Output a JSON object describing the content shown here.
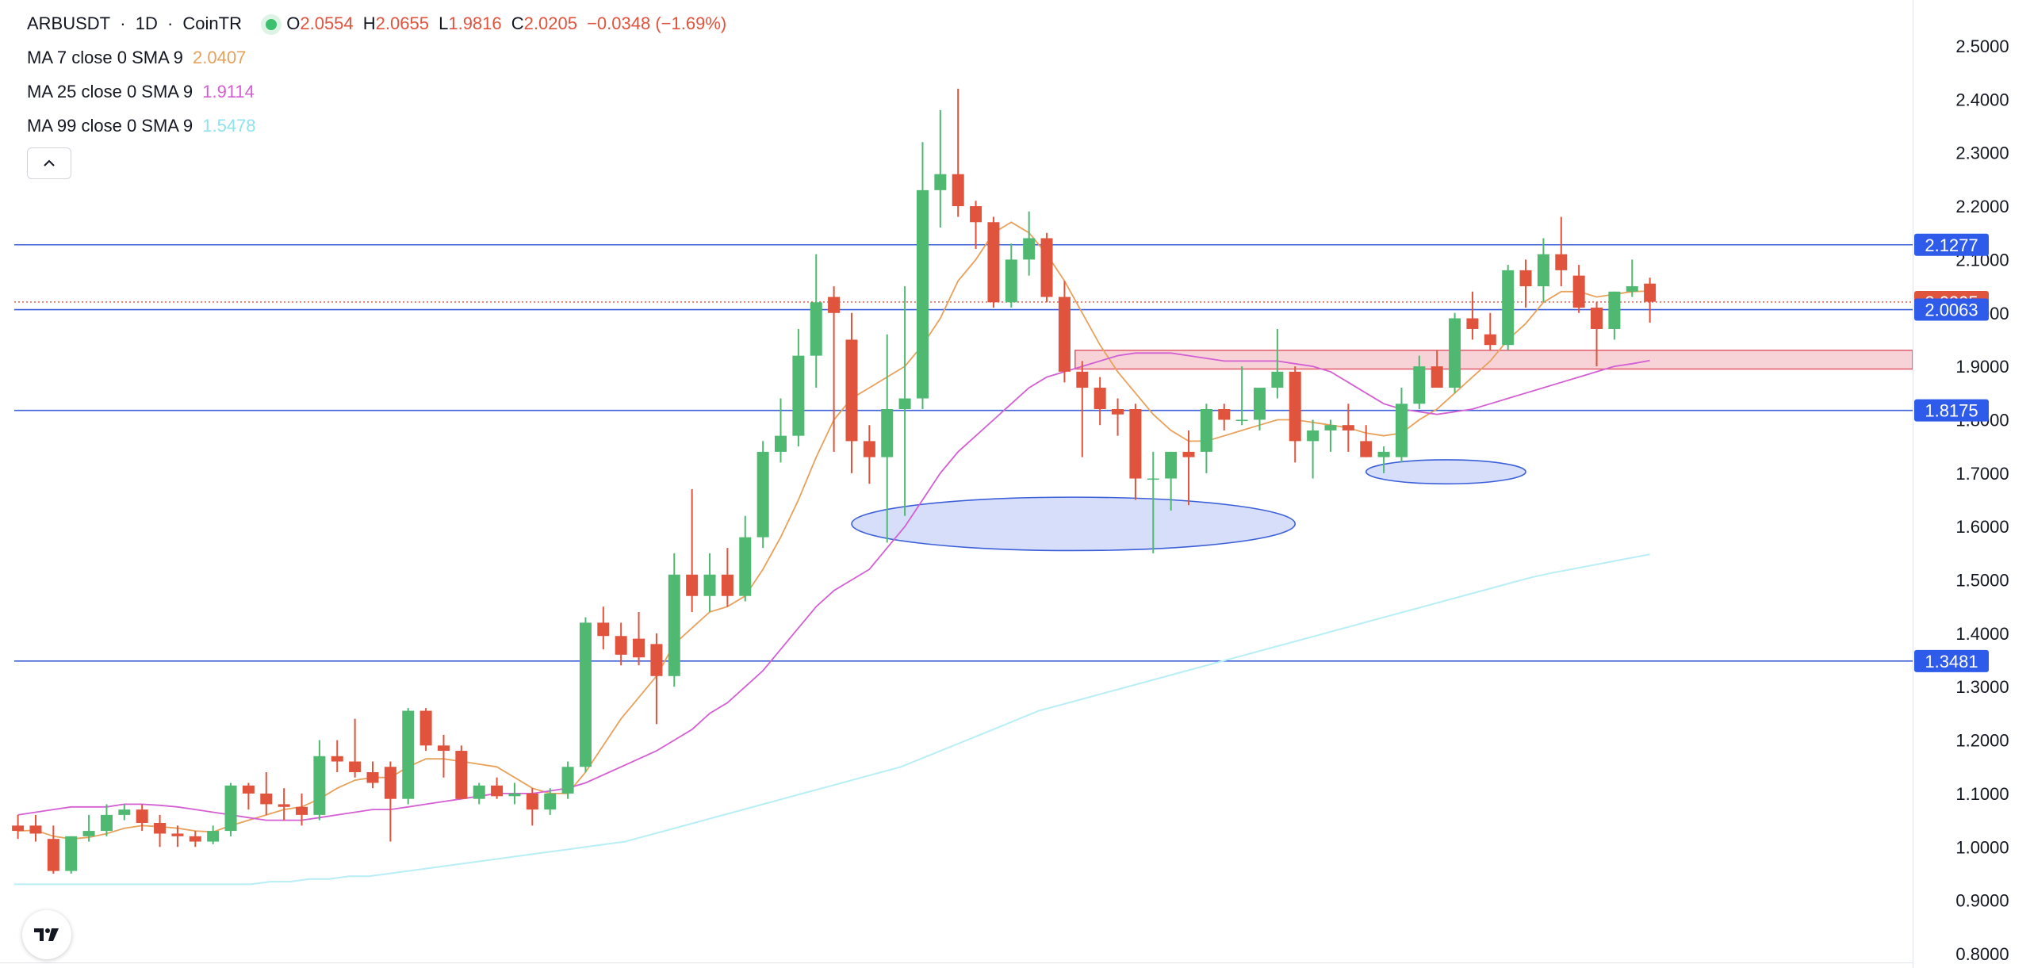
{
  "header": {
    "symbol": "ARBUSDT",
    "sep1": "·",
    "interval": "1D",
    "sep2": "·",
    "exchange": "CoinTR",
    "open_label": "O",
    "open": "2.0554",
    "high_label": "H",
    "high": "2.0655",
    "low_label": "L",
    "low": "1.9816",
    "close_label": "C",
    "close": "2.0205",
    "change": "−0.0348 (−1.69%)"
  },
  "legend": [
    {
      "label": "MA 7 close 0 SMA 9",
      "value": "2.0407",
      "color": "#e8a15b"
    },
    {
      "label": "MA 25 close 0 SMA 9",
      "value": "1.9114",
      "color": "#d45fd3"
    },
    {
      "label": "MA 99 close 0 SMA 9",
      "value": "1.5478",
      "color": "#8fe3ee"
    }
  ],
  "colors": {
    "up": "#4fb971",
    "down": "#e0533d",
    "hline": "#3b5fd9",
    "ellipse_fill": "#d6defa",
    "zone_fill": "#f7d3d7",
    "zone_stroke": "#e05a6a"
  },
  "chart_data": {
    "type": "candlestick",
    "interval": "1D",
    "y_axis": {
      "ticks": [
        "0.8000",
        "0.9000",
        "1.0000",
        "1.1000",
        "1.2000",
        "1.3000",
        "1.4000",
        "1.5000",
        "1.6000",
        "1.7000",
        "1.8000",
        "1.9000",
        "2.0000",
        "2.1000",
        "2.2000",
        "2.3000",
        "2.4000",
        "2.5000"
      ],
      "range": [
        0.8,
        2.5
      ]
    },
    "grid": false,
    "candles": [
      {
        "o": 1.04,
        "h": 1.06,
        "l": 1.015,
        "c": 1.03
      },
      {
        "o": 1.04,
        "h": 1.06,
        "l": 1.01,
        "c": 1.025
      },
      {
        "o": 1.015,
        "h": 1.04,
        "l": 0.95,
        "c": 0.955
      },
      {
        "o": 0.955,
        "h": 1.02,
        "l": 0.95,
        "c": 1.02
      },
      {
        "o": 1.02,
        "h": 1.06,
        "l": 1.01,
        "c": 1.03
      },
      {
        "o": 1.03,
        "h": 1.08,
        "l": 1.02,
        "c": 1.06
      },
      {
        "o": 1.06,
        "h": 1.08,
        "l": 1.05,
        "c": 1.07
      },
      {
        "o": 1.07,
        "h": 1.08,
        "l": 1.03,
        "c": 1.045
      },
      {
        "o": 1.045,
        "h": 1.06,
        "l": 1.0,
        "c": 1.025
      },
      {
        "o": 1.025,
        "h": 1.04,
        "l": 1.0,
        "c": 1.02
      },
      {
        "o": 1.02,
        "h": 1.03,
        "l": 1.0,
        "c": 1.01
      },
      {
        "o": 1.01,
        "h": 1.04,
        "l": 1.005,
        "c": 1.03
      },
      {
        "o": 1.03,
        "h": 1.12,
        "l": 1.02,
        "c": 1.115
      },
      {
        "o": 1.115,
        "h": 1.12,
        "l": 1.07,
        "c": 1.1
      },
      {
        "o": 1.1,
        "h": 1.14,
        "l": 1.06,
        "c": 1.08
      },
      {
        "o": 1.08,
        "h": 1.11,
        "l": 1.05,
        "c": 1.075
      },
      {
        "o": 1.075,
        "h": 1.1,
        "l": 1.04,
        "c": 1.06
      },
      {
        "o": 1.06,
        "h": 1.2,
        "l": 1.05,
        "c": 1.17
      },
      {
        "o": 1.17,
        "h": 1.2,
        "l": 1.14,
        "c": 1.16
      },
      {
        "o": 1.16,
        "h": 1.24,
        "l": 1.13,
        "c": 1.14
      },
      {
        "o": 1.14,
        "h": 1.16,
        "l": 1.11,
        "c": 1.12
      },
      {
        "o": 1.15,
        "h": 1.16,
        "l": 1.01,
        "c": 1.09
      },
      {
        "o": 1.09,
        "h": 1.26,
        "l": 1.08,
        "c": 1.255
      },
      {
        "o": 1.255,
        "h": 1.26,
        "l": 1.18,
        "c": 1.19
      },
      {
        "o": 1.19,
        "h": 1.21,
        "l": 1.13,
        "c": 1.18
      },
      {
        "o": 1.18,
        "h": 1.19,
        "l": 1.09,
        "c": 1.09
      },
      {
        "o": 1.09,
        "h": 1.12,
        "l": 1.08,
        "c": 1.115
      },
      {
        "o": 1.115,
        "h": 1.13,
        "l": 1.09,
        "c": 1.095
      },
      {
        "o": 1.095,
        "h": 1.12,
        "l": 1.08,
        "c": 1.1
      },
      {
        "o": 1.1,
        "h": 1.11,
        "l": 1.04,
        "c": 1.07
      },
      {
        "o": 1.07,
        "h": 1.11,
        "l": 1.06,
        "c": 1.1
      },
      {
        "o": 1.1,
        "h": 1.16,
        "l": 1.09,
        "c": 1.15
      },
      {
        "o": 1.15,
        "h": 1.43,
        "l": 1.14,
        "c": 1.42
      },
      {
        "o": 1.42,
        "h": 1.45,
        "l": 1.37,
        "c": 1.395
      },
      {
        "o": 1.395,
        "h": 1.42,
        "l": 1.34,
        "c": 1.36
      },
      {
        "o": 1.39,
        "h": 1.44,
        "l": 1.34,
        "c": 1.355
      },
      {
        "o": 1.38,
        "h": 1.4,
        "l": 1.23,
        "c": 1.32
      },
      {
        "o": 1.32,
        "h": 1.55,
        "l": 1.3,
        "c": 1.51
      },
      {
        "o": 1.51,
        "h": 1.67,
        "l": 1.44,
        "c": 1.47
      },
      {
        "o": 1.47,
        "h": 1.55,
        "l": 1.44,
        "c": 1.51
      },
      {
        "o": 1.51,
        "h": 1.56,
        "l": 1.45,
        "c": 1.47
      },
      {
        "o": 1.47,
        "h": 1.62,
        "l": 1.46,
        "c": 1.58
      },
      {
        "o": 1.58,
        "h": 1.76,
        "l": 1.56,
        "c": 1.74
      },
      {
        "o": 1.74,
        "h": 1.84,
        "l": 1.72,
        "c": 1.77
      },
      {
        "o": 1.77,
        "h": 1.97,
        "l": 1.75,
        "c": 1.92
      },
      {
        "o": 1.92,
        "h": 2.11,
        "l": 1.86,
        "c": 2.02
      },
      {
        "o": 2.03,
        "h": 2.05,
        "l": 1.74,
        "c": 2.0
      },
      {
        "o": 1.95,
        "h": 2.0,
        "l": 1.7,
        "c": 1.76
      },
      {
        "o": 1.76,
        "h": 1.79,
        "l": 1.68,
        "c": 1.73
      },
      {
        "o": 1.73,
        "h": 1.96,
        "l": 1.57,
        "c": 1.82
      },
      {
        "o": 1.82,
        "h": 2.05,
        "l": 1.62,
        "c": 1.84
      },
      {
        "o": 1.84,
        "h": 2.32,
        "l": 1.82,
        "c": 2.23
      },
      {
        "o": 2.23,
        "h": 2.38,
        "l": 2.16,
        "c": 2.26
      },
      {
        "o": 2.26,
        "h": 2.42,
        "l": 2.18,
        "c": 2.2
      },
      {
        "o": 2.2,
        "h": 2.21,
        "l": 2.12,
        "c": 2.17
      },
      {
        "o": 2.17,
        "h": 2.18,
        "l": 2.01,
        "c": 2.02
      },
      {
        "o": 2.02,
        "h": 2.13,
        "l": 2.01,
        "c": 2.1
      },
      {
        "o": 2.1,
        "h": 2.19,
        "l": 2.07,
        "c": 2.14
      },
      {
        "o": 2.14,
        "h": 2.15,
        "l": 2.02,
        "c": 2.03
      },
      {
        "o": 2.03,
        "h": 2.06,
        "l": 1.87,
        "c": 1.89
      },
      {
        "o": 1.89,
        "h": 1.91,
        "l": 1.73,
        "c": 1.86
      },
      {
        "o": 1.86,
        "h": 1.88,
        "l": 1.79,
        "c": 1.82
      },
      {
        "o": 1.82,
        "h": 1.84,
        "l": 1.77,
        "c": 1.81
      },
      {
        "o": 1.82,
        "h": 1.83,
        "l": 1.65,
        "c": 1.69
      },
      {
        "o": 1.69,
        "h": 1.74,
        "l": 1.55,
        "c": 1.69
      },
      {
        "o": 1.69,
        "h": 1.74,
        "l": 1.63,
        "c": 1.74
      },
      {
        "o": 1.74,
        "h": 1.78,
        "l": 1.64,
        "c": 1.73
      },
      {
        "o": 1.74,
        "h": 1.83,
        "l": 1.7,
        "c": 1.82
      },
      {
        "o": 1.82,
        "h": 1.83,
        "l": 1.78,
        "c": 1.8
      },
      {
        "o": 1.8,
        "h": 1.9,
        "l": 1.79,
        "c": 1.8
      },
      {
        "o": 1.8,
        "h": 1.86,
        "l": 1.78,
        "c": 1.86
      },
      {
        "o": 1.86,
        "h": 1.97,
        "l": 1.84,
        "c": 1.89
      },
      {
        "o": 1.89,
        "h": 1.9,
        "l": 1.72,
        "c": 1.76
      },
      {
        "o": 1.76,
        "h": 1.8,
        "l": 1.69,
        "c": 1.78
      },
      {
        "o": 1.78,
        "h": 1.8,
        "l": 1.74,
        "c": 1.79
      },
      {
        "o": 1.79,
        "h": 1.83,
        "l": 1.74,
        "c": 1.78
      },
      {
        "o": 1.76,
        "h": 1.79,
        "l": 1.73,
        "c": 1.73
      },
      {
        "o": 1.73,
        "h": 1.75,
        "l": 1.7,
        "c": 1.74
      },
      {
        "o": 1.73,
        "h": 1.86,
        "l": 1.72,
        "c": 1.83
      },
      {
        "o": 1.83,
        "h": 1.92,
        "l": 1.82,
        "c": 1.9
      },
      {
        "o": 1.9,
        "h": 1.93,
        "l": 1.86,
        "c": 1.86
      },
      {
        "o": 1.86,
        "h": 2.0,
        "l": 1.85,
        "c": 1.99
      },
      {
        "o": 1.99,
        "h": 2.04,
        "l": 1.95,
        "c": 1.97
      },
      {
        "o": 1.96,
        "h": 2.0,
        "l": 1.93,
        "c": 1.94
      },
      {
        "o": 1.94,
        "h": 2.09,
        "l": 1.93,
        "c": 2.08
      },
      {
        "o": 2.08,
        "h": 2.1,
        "l": 2.01,
        "c": 2.05
      },
      {
        "o": 2.05,
        "h": 2.14,
        "l": 2.02,
        "c": 2.11
      },
      {
        "o": 2.11,
        "h": 2.18,
        "l": 2.05,
        "c": 2.08
      },
      {
        "o": 2.07,
        "h": 2.09,
        "l": 2.0,
        "c": 2.01
      },
      {
        "o": 2.01,
        "h": 2.02,
        "l": 1.9,
        "c": 1.97
      },
      {
        "o": 1.97,
        "h": 2.04,
        "l": 1.95,
        "c": 2.04
      },
      {
        "o": 2.04,
        "h": 2.1,
        "l": 2.03,
        "c": 2.05
      },
      {
        "o": 2.055,
        "h": 2.066,
        "l": 1.982,
        "c": 2.021
      }
    ],
    "moving_averages": [
      {
        "name": "MA 7",
        "values": [
          1.03,
          1.031,
          1.02,
          1.015,
          1.018,
          1.025,
          1.035,
          1.04,
          1.038,
          1.035,
          1.03,
          1.028,
          1.04,
          1.05,
          1.06,
          1.07,
          1.075,
          1.09,
          1.11,
          1.125,
          1.13,
          1.13,
          1.15,
          1.165,
          1.165,
          1.16,
          1.155,
          1.15,
          1.13,
          1.11,
          1.1,
          1.1,
          1.14,
          1.19,
          1.24,
          1.28,
          1.32,
          1.38,
          1.41,
          1.44,
          1.45,
          1.47,
          1.52,
          1.58,
          1.65,
          1.73,
          1.8,
          1.84,
          1.86,
          1.88,
          1.9,
          1.94,
          1.99,
          2.06,
          2.1,
          2.15,
          2.17,
          2.15,
          2.11,
          2.06,
          2.0,
          1.94,
          1.89,
          1.85,
          1.81,
          1.78,
          1.76,
          1.76,
          1.77,
          1.78,
          1.79,
          1.8,
          1.8,
          1.795,
          1.79,
          1.785,
          1.775,
          1.77,
          1.775,
          1.8,
          1.82,
          1.85,
          1.88,
          1.91,
          1.95,
          1.98,
          2.02,
          2.04,
          2.04,
          2.03,
          2.035,
          2.04,
          2.041
        ]
      },
      {
        "name": "MA 25",
        "values": [
          1.06,
          1.065,
          1.07,
          1.075,
          1.075,
          1.075,
          1.08,
          1.08,
          1.078,
          1.075,
          1.07,
          1.065,
          1.06,
          1.055,
          1.05,
          1.05,
          1.05,
          1.055,
          1.06,
          1.065,
          1.07,
          1.07,
          1.075,
          1.08,
          1.085,
          1.09,
          1.095,
          1.1,
          1.1,
          1.1,
          1.105,
          1.11,
          1.12,
          1.135,
          1.15,
          1.165,
          1.18,
          1.2,
          1.22,
          1.25,
          1.27,
          1.3,
          1.33,
          1.37,
          1.41,
          1.45,
          1.48,
          1.5,
          1.52,
          1.56,
          1.6,
          1.65,
          1.7,
          1.74,
          1.77,
          1.8,
          1.83,
          1.86,
          1.88,
          1.89,
          1.9,
          1.91,
          1.92,
          1.925,
          1.925,
          1.925,
          1.92,
          1.915,
          1.91,
          1.91,
          1.91,
          1.91,
          1.905,
          1.9,
          1.89,
          1.87,
          1.85,
          1.83,
          1.82,
          1.815,
          1.81,
          1.815,
          1.82,
          1.83,
          1.84,
          1.85,
          1.86,
          1.87,
          1.88,
          1.89,
          1.9,
          1.905,
          1.911
        ]
      },
      {
        "name": "MA 99",
        "values": [
          0.93,
          0.93,
          0.93,
          0.93,
          0.93,
          0.93,
          0.93,
          0.93,
          0.93,
          0.93,
          0.93,
          0.93,
          0.93,
          0.935,
          0.935,
          0.94,
          0.94,
          0.945,
          0.945,
          0.95,
          0.955,
          0.96,
          0.965,
          0.97,
          0.975,
          0.98,
          0.985,
          0.99,
          0.995,
          1.0,
          1.005,
          1.01,
          1.02,
          1.03,
          1.04,
          1.05,
          1.06,
          1.07,
          1.08,
          1.09,
          1.1,
          1.11,
          1.12,
          1.13,
          1.14,
          1.15,
          1.165,
          1.18,
          1.195,
          1.21,
          1.225,
          1.24,
          1.255,
          1.265,
          1.275,
          1.285,
          1.295,
          1.305,
          1.315,
          1.325,
          1.335,
          1.345,
          1.355,
          1.365,
          1.375,
          1.385,
          1.395,
          1.405,
          1.415,
          1.425,
          1.435,
          1.445,
          1.455,
          1.465,
          1.475,
          1.485,
          1.495,
          1.505,
          1.513,
          1.52,
          1.527,
          1.534,
          1.541,
          1.5478
        ]
      }
    ],
    "horizontal_lines": [
      {
        "value": 2.1277,
        "label": "2.1277"
      },
      {
        "value": 2.0063,
        "label": "2.0063"
      },
      {
        "value": 1.8175,
        "label": "1.8175"
      },
      {
        "value": 1.3481,
        "label": "1.3481"
      }
    ],
    "last_price": {
      "value": 2.0205,
      "label": "2.0205"
    },
    "zone": {
      "from_bar": 60,
      "to_bar": "end",
      "y_low": 1.895,
      "y_high": 1.93
    },
    "ellipses": [
      {
        "from_bar": 47,
        "to_bar": 72,
        "y_top": 1.655,
        "y_bottom": 1.555
      },
      {
        "from_bar": 76,
        "to_bar": 85,
        "y_top": 1.725,
        "y_bottom": 1.68
      }
    ]
  }
}
